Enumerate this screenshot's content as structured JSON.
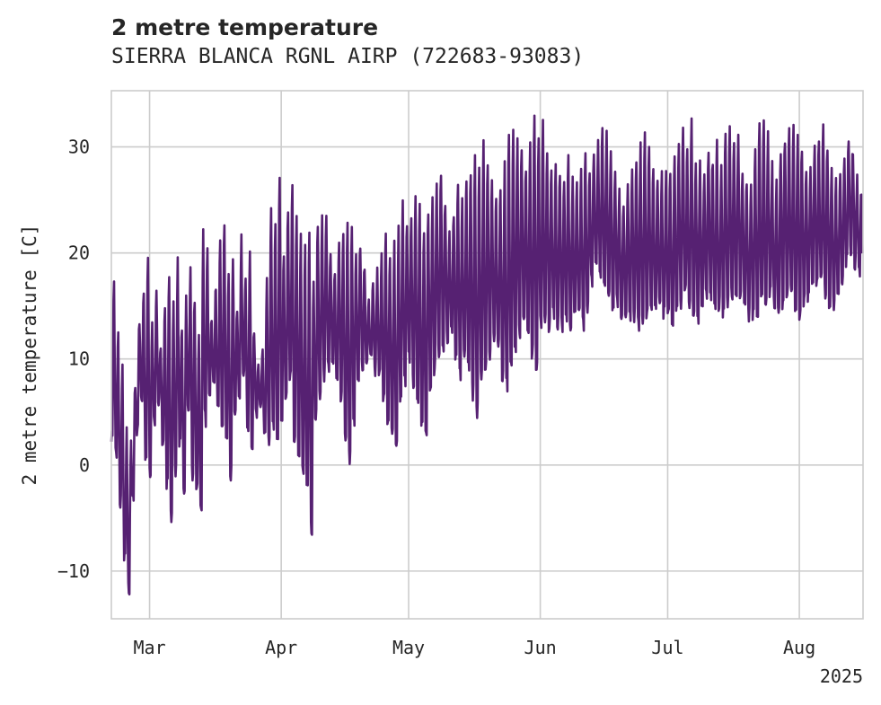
{
  "chart_data": {
    "type": "line",
    "title": "2 metre temperature",
    "subtitle": "SIERRA BLANCA RGNL AIRP (722683-93083)",
    "ylabel": "2 metre temperature [C]",
    "xlabel": "",
    "x_start": "2025-02-20",
    "x_end": "2025-08-16",
    "ylim": [
      -14.5,
      35.3
    ],
    "yticks": [
      -10,
      0,
      10,
      20,
      30
    ],
    "ytick_labels": [
      "−10",
      "0",
      "10",
      "20",
      "30"
    ],
    "xticks": [
      "2025-03-01",
      "2025-04-01",
      "2025-05-01",
      "2025-06-01",
      "2025-07-01",
      "2025-08-01"
    ],
    "xtick_labels": [
      "Mar",
      "Apr",
      "May",
      "Jun",
      "Jul",
      "Aug"
    ],
    "x_year_label": "2025",
    "grid": true,
    "line_color": "#562172",
    "series": [
      {
        "x": [
          "2025-02-20",
          "2025-02-21",
          "2025-02-22",
          "2025-02-23",
          "2025-02-24",
          "2025-02-25",
          "2025-02-26",
          "2025-02-27",
          "2025-02-28",
          "2025-03-01",
          "2025-03-02",
          "2025-03-03",
          "2025-03-04",
          "2025-03-05",
          "2025-03-06",
          "2025-03-07",
          "2025-03-08",
          "2025-03-09",
          "2025-03-10",
          "2025-03-11",
          "2025-03-12",
          "2025-03-13",
          "2025-03-14",
          "2025-03-15",
          "2025-03-16",
          "2025-03-17",
          "2025-03-18",
          "2025-03-19",
          "2025-03-20",
          "2025-03-21",
          "2025-03-22",
          "2025-03-23",
          "2025-03-24",
          "2025-03-25",
          "2025-03-26",
          "2025-03-27",
          "2025-03-28",
          "2025-03-29",
          "2025-03-30",
          "2025-03-31",
          "2025-04-01",
          "2025-04-02",
          "2025-04-03",
          "2025-04-04",
          "2025-04-05",
          "2025-04-06",
          "2025-04-07",
          "2025-04-08",
          "2025-04-09",
          "2025-04-10",
          "2025-04-11",
          "2025-04-12",
          "2025-04-13",
          "2025-04-14",
          "2025-04-15",
          "2025-04-16",
          "2025-04-17",
          "2025-04-18",
          "2025-04-19",
          "2025-04-20",
          "2025-04-21",
          "2025-04-22",
          "2025-04-23",
          "2025-04-24",
          "2025-04-25",
          "2025-04-26",
          "2025-04-27",
          "2025-04-28",
          "2025-04-29",
          "2025-04-30",
          "2025-05-01",
          "2025-05-02",
          "2025-05-03",
          "2025-05-04",
          "2025-05-05",
          "2025-05-06",
          "2025-05-07",
          "2025-05-08",
          "2025-05-09",
          "2025-05-10",
          "2025-05-11",
          "2025-05-12",
          "2025-05-13",
          "2025-05-14",
          "2025-05-15",
          "2025-05-16",
          "2025-05-17",
          "2025-05-18",
          "2025-05-19",
          "2025-05-20",
          "2025-05-21",
          "2025-05-22",
          "2025-05-23",
          "2025-05-24",
          "2025-05-25",
          "2025-05-26",
          "2025-05-27",
          "2025-05-28",
          "2025-05-29",
          "2025-05-30",
          "2025-05-31",
          "2025-06-01",
          "2025-06-02",
          "2025-06-03",
          "2025-06-04",
          "2025-06-05",
          "2025-06-06",
          "2025-06-07",
          "2025-06-08",
          "2025-06-09",
          "2025-06-10",
          "2025-06-11",
          "2025-06-12",
          "2025-06-13",
          "2025-06-14",
          "2025-06-15",
          "2025-06-16",
          "2025-06-17",
          "2025-06-18",
          "2025-06-19",
          "2025-06-20",
          "2025-06-21",
          "2025-06-22",
          "2025-06-23",
          "2025-06-24",
          "2025-06-25",
          "2025-06-26",
          "2025-06-27",
          "2025-06-28",
          "2025-06-29",
          "2025-06-30",
          "2025-07-01",
          "2025-07-02",
          "2025-07-03",
          "2025-07-04",
          "2025-07-05",
          "2025-07-06",
          "2025-07-07",
          "2025-07-08",
          "2025-07-09",
          "2025-07-10",
          "2025-07-11",
          "2025-07-12",
          "2025-07-13",
          "2025-07-14",
          "2025-07-15",
          "2025-07-16",
          "2025-07-17",
          "2025-07-18",
          "2025-07-19",
          "2025-07-20",
          "2025-07-21",
          "2025-07-22",
          "2025-07-23",
          "2025-07-24",
          "2025-07-25",
          "2025-07-26",
          "2025-07-27",
          "2025-07-28",
          "2025-07-29",
          "2025-07-30",
          "2025-07-31",
          "2025-08-01",
          "2025-08-02",
          "2025-08-03",
          "2025-08-04",
          "2025-08-05",
          "2025-08-06",
          "2025-08-07",
          "2025-08-08",
          "2025-08-09",
          "2025-08-10",
          "2025-08-11",
          "2025-08-12",
          "2025-08-13",
          "2025-08-14",
          "2025-08-15"
        ],
        "min": [
          2,
          1,
          -4,
          -9,
          -12,
          -3,
          3,
          6,
          0,
          -1,
          4,
          6,
          2,
          -2,
          -5,
          -1,
          2,
          -3,
          5,
          -1,
          -3,
          -5,
          4,
          6,
          8,
          5,
          3,
          2,
          -1,
          4,
          6,
          8,
          3,
          2,
          5,
          6,
          3,
          2,
          3,
          2,
          4,
          6,
          8,
          2,
          1,
          -1,
          -3,
          -7,
          4,
          6,
          8,
          9,
          10,
          8,
          6,
          2,
          0,
          4,
          8,
          9,
          9,
          10,
          9,
          8,
          6,
          4,
          3,
          2,
          6,
          8,
          10,
          8,
          6,
          4,
          3,
          7,
          9,
          10,
          11,
          12,
          13,
          10,
          8,
          10,
          9,
          6,
          5,
          8,
          9,
          10,
          12,
          11,
          8,
          7,
          9,
          11,
          12,
          14,
          12,
          10,
          9,
          13,
          13,
          13,
          14,
          13,
          13,
          14,
          13,
          14,
          14,
          13,
          15,
          17,
          19,
          18,
          17,
          16,
          15,
          15,
          14,
          14,
          14,
          14,
          13,
          13,
          14,
          14,
          15,
          15,
          14,
          14,
          13,
          14,
          15,
          16,
          15,
          14,
          14,
          15,
          16,
          16,
          15,
          15,
          14,
          15,
          16,
          16,
          16,
          15,
          14,
          14,
          14,
          15,
          15,
          16,
          15,
          14,
          15,
          16,
          16,
          15,
          14,
          15,
          16,
          17,
          17,
          17,
          16,
          15,
          15,
          16,
          17,
          19,
          20,
          19,
          18,
          17,
          16,
          16,
          15,
          15,
          14,
          14,
          15,
          16
        ],
        "max": [
          17,
          12,
          9,
          3,
          2,
          8,
          14,
          16,
          20,
          13,
          16,
          11,
          15,
          18,
          16,
          19,
          13,
          16,
          18,
          16,
          12,
          22,
          20,
          14,
          17,
          21,
          23,
          18,
          20,
          15,
          21,
          18,
          20,
          13,
          9,
          11,
          17,
          24,
          23,
          27,
          20,
          24,
          26,
          23,
          22,
          21,
          22,
          18,
          23,
          23,
          24,
          20,
          18,
          21,
          22,
          23,
          23,
          20,
          21,
          19,
          16,
          17,
          18,
          20,
          22,
          20,
          21,
          22,
          25,
          23,
          24,
          25,
          24,
          22,
          24,
          25,
          27,
          28,
          25,
          22,
          24,
          26,
          25,
          27,
          28,
          29,
          28,
          30,
          29,
          27,
          25,
          26,
          28,
          31,
          32,
          31,
          30,
          28,
          30,
          33,
          31,
          32,
          30,
          28,
          29,
          28,
          27,
          29,
          27,
          26,
          28,
          29,
          28,
          30,
          30,
          32,
          31,
          29,
          28,
          26,
          25,
          27,
          28,
          29,
          30,
          31,
          30,
          28,
          27,
          28,
          27,
          27,
          29,
          31,
          32,
          30,
          32,
          29,
          28,
          28,
          30,
          29,
          30,
          28,
          31,
          32,
          30,
          31,
          28,
          27,
          27,
          30,
          32,
          32,
          31,
          28,
          27,
          30,
          31,
          32,
          32,
          31,
          30,
          28,
          28,
          30,
          31,
          32,
          30,
          28,
          27,
          28,
          29,
          31,
          30,
          27,
          26,
          27,
          28,
          28,
          27,
          26,
          25,
          24,
          23,
          26
        ]
      }
    ]
  }
}
